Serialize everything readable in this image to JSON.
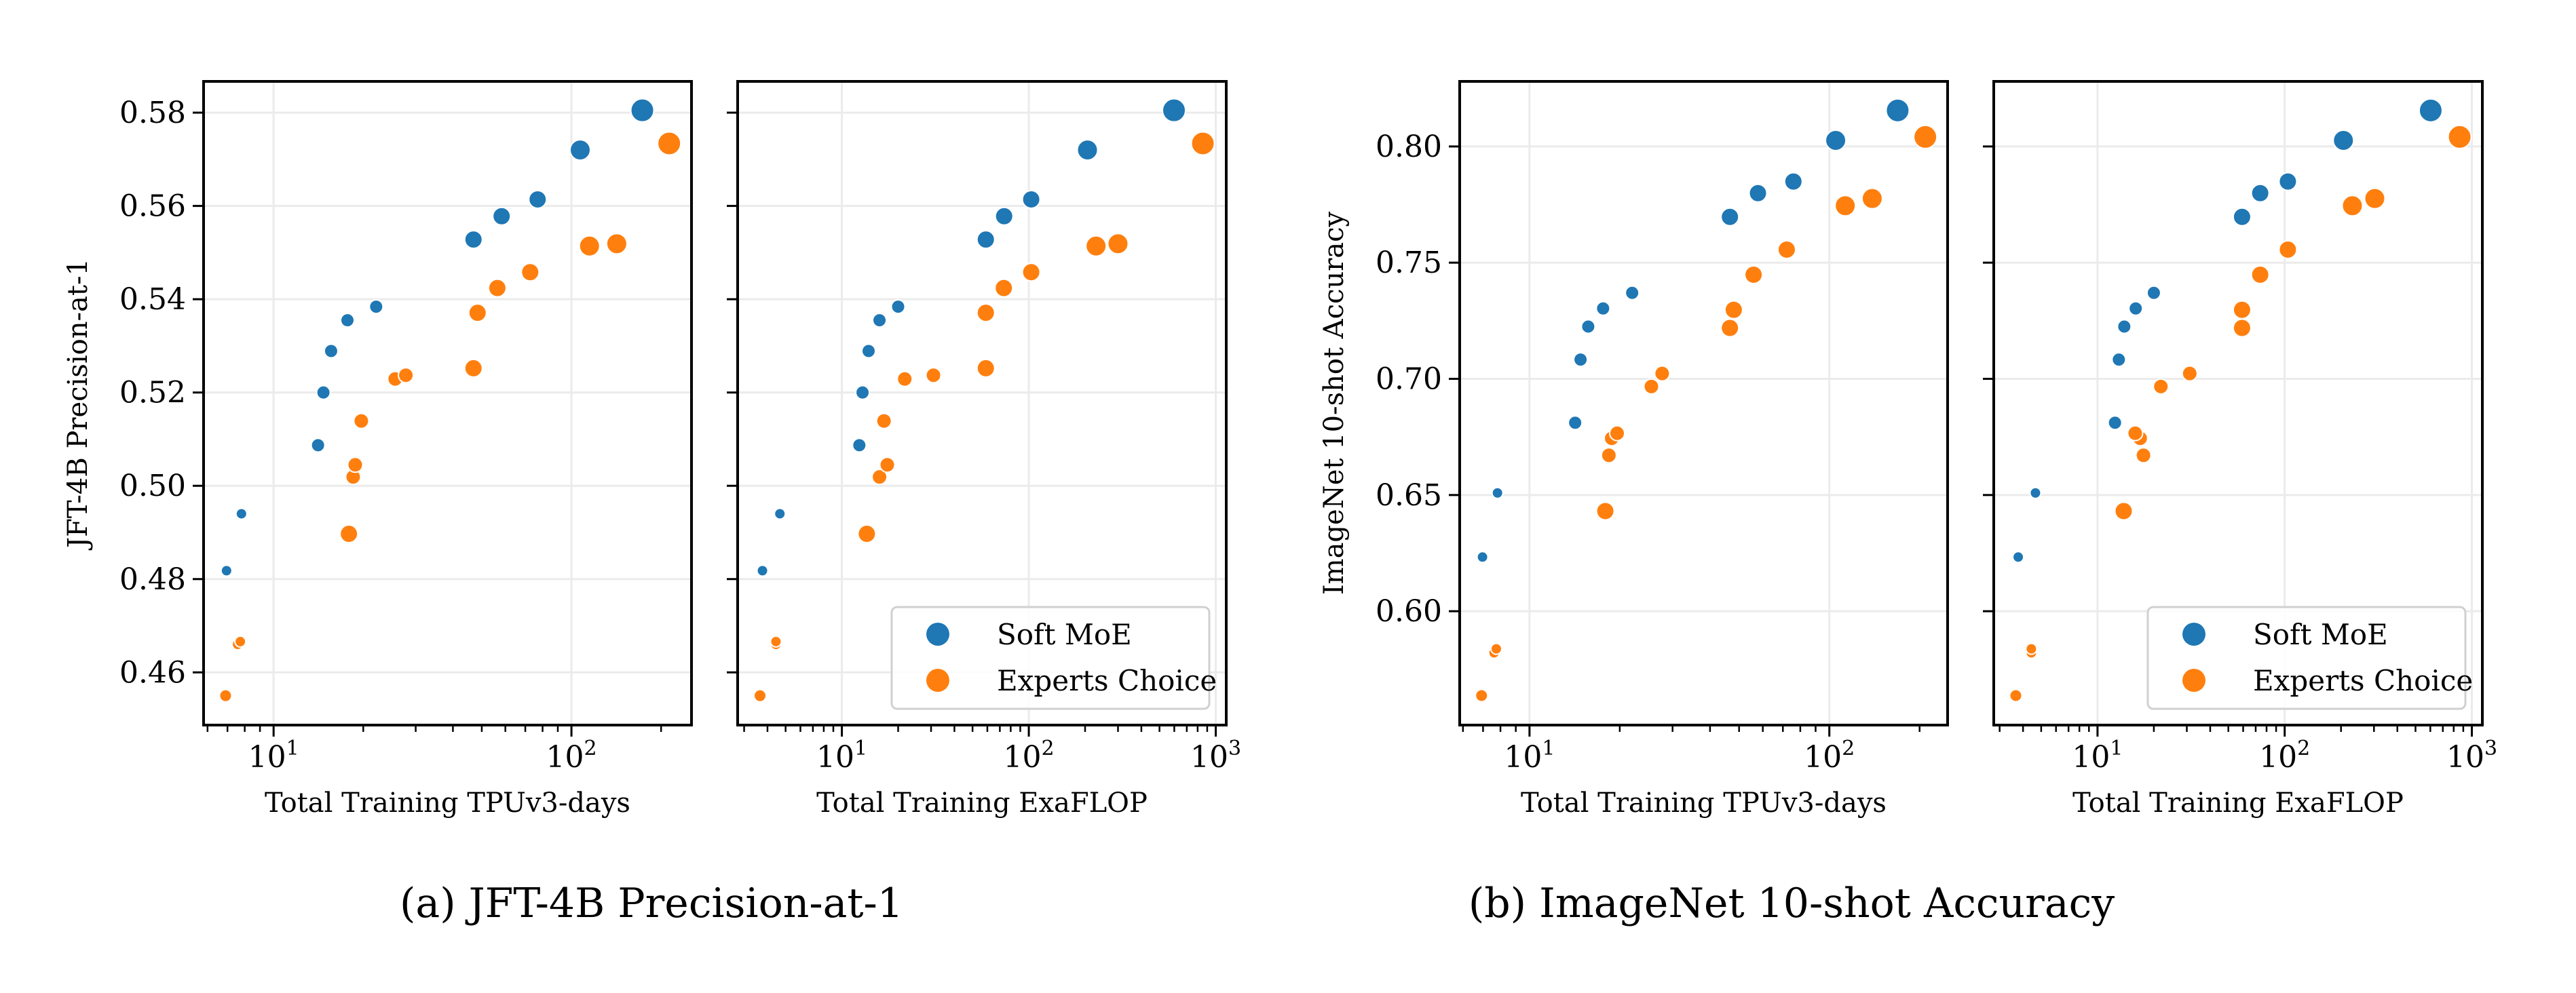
{
  "captions": {
    "a": "(a) JFT-4B Precision-at-1",
    "b": "(b) ImageNet 10-shot Accuracy"
  },
  "colors": {
    "soft_moe": "#1f77b4",
    "experts_choice": "#ff7f0e",
    "grid": "#ebebeb"
  },
  "legend": {
    "soft_moe": "Soft MoE",
    "experts_choice": "Experts Choice"
  },
  "chart_data": [
    {
      "type": "scatter",
      "group": "a",
      "xlabel": "Total Training TPUv3-days",
      "ylabel": "JFT-4B Precision-at-1",
      "xscale": "log",
      "xlim": [
        5.82,
        253
      ],
      "xticks": [
        10,
        100
      ],
      "xtick_labels": [
        "10^1",
        "10^2"
      ],
      "ylim": [
        0.4487,
        0.5867
      ],
      "yticks": [
        0.46,
        0.48,
        0.5,
        0.52,
        0.54,
        0.56,
        0.58
      ],
      "ytick_labels": [
        "0.46",
        "0.48",
        "0.50",
        "0.52",
        "0.54",
        "0.56",
        "0.58"
      ],
      "grid": true,
      "legend": false,
      "series": [
        {
          "name": "Soft MoE",
          "points": [
            [
              6.95,
              0.4818
            ],
            [
              7.8,
              0.494
            ],
            [
              14.1,
              0.5087
            ],
            [
              14.7,
              0.52
            ],
            [
              15.6,
              0.5289
            ],
            [
              17.7,
              0.5355
            ],
            [
              22.1,
              0.5384
            ],
            [
              46.9,
              0.5528
            ],
            [
              58.3,
              0.5578
            ],
            [
              77.0,
              0.5614
            ],
            [
              107,
              0.572
            ],
            [
              173,
              0.5805
            ]
          ]
        },
        {
          "name": "Experts Choice",
          "points": [
            [
              6.9,
              0.455
            ],
            [
              7.57,
              0.466
            ],
            [
              7.73,
              0.4666
            ],
            [
              17.9,
              0.4897
            ],
            [
              18.5,
              0.5019
            ],
            [
              18.8,
              0.5045
            ],
            [
              19.7,
              0.5139
            ],
            [
              25.6,
              0.5229
            ],
            [
              27.8,
              0.5237
            ],
            [
              46.9,
              0.5252
            ],
            [
              48.4,
              0.5371
            ],
            [
              56.4,
              0.5424
            ],
            [
              72.7,
              0.5458
            ],
            [
              115,
              0.5514
            ],
            [
              142,
              0.5519
            ],
            [
              213,
              0.5734
            ]
          ]
        }
      ]
    },
    {
      "type": "scatter",
      "group": "a",
      "xlabel": "Total Training ExaFLOP",
      "ylabel": "",
      "xscale": "log",
      "xlim": [
        2.77,
        1138
      ],
      "xticks": [
        10,
        100,
        1000
      ],
      "xtick_labels": [
        "10^1",
        "10^2",
        "10^3"
      ],
      "ylim": [
        0.4487,
        0.5867
      ],
      "yticks": [
        0.46,
        0.48,
        0.5,
        0.52,
        0.54,
        0.56,
        0.58
      ],
      "grid": true,
      "legend": "lower right",
      "series": [
        {
          "name": "Soft MoE",
          "points": [
            [
              3.76,
              0.4818
            ],
            [
              4.66,
              0.494
            ],
            [
              12.4,
              0.5087
            ],
            [
              12.9,
              0.52
            ],
            [
              13.9,
              0.5289
            ],
            [
              15.9,
              0.5355
            ],
            [
              20.0,
              0.5384
            ],
            [
              58.9,
              0.5528
            ],
            [
              73.8,
              0.5578
            ],
            [
              103,
              0.5614
            ],
            [
              206,
              0.572
            ],
            [
              598,
              0.5805
            ]
          ]
        },
        {
          "name": "Experts Choice",
          "points": [
            [
              3.65,
              0.455
            ],
            [
              4.44,
              0.466
            ],
            [
              4.44,
              0.4666
            ],
            [
              13.6,
              0.4897
            ],
            [
              15.9,
              0.5019
            ],
            [
              17.5,
              0.5045
            ],
            [
              16.8,
              0.5139
            ],
            [
              21.7,
              0.5229
            ],
            [
              30.9,
              0.5237
            ],
            [
              58.9,
              0.5252
            ],
            [
              58.9,
              0.5371
            ],
            [
              73.5,
              0.5424
            ],
            [
              103,
              0.5458
            ],
            [
              229,
              0.5514
            ],
            [
              300,
              0.5519
            ],
            [
              853,
              0.5734
            ]
          ]
        }
      ]
    },
    {
      "type": "scatter",
      "group": "b",
      "xlabel": "Total Training TPUv3-days",
      "ylabel": "ImageNet 10-shot Accuracy",
      "xscale": "log",
      "xlim": [
        5.85,
        248
      ],
      "xticks": [
        10,
        100
      ],
      "xtick_labels": [
        "10^1",
        "10^2"
      ],
      "ylim": [
        0.551,
        0.828
      ],
      "yticks": [
        0.6,
        0.65,
        0.7,
        0.75,
        0.8
      ],
      "ytick_labels": [
        "0.60",
        "0.65",
        "0.70",
        "0.75",
        "0.80"
      ],
      "grid": true,
      "legend": false,
      "series": [
        {
          "name": "Soft MoE",
          "points": [
            [
              6.97,
              0.6233
            ],
            [
              7.82,
              0.6509
            ],
            [
              14.2,
              0.6811
            ],
            [
              14.8,
              0.7083
            ],
            [
              15.7,
              0.7225
            ],
            [
              17.6,
              0.7303
            ],
            [
              22.0,
              0.737
            ],
            [
              46.6,
              0.7697
            ],
            [
              57.8,
              0.7799
            ],
            [
              75.9,
              0.7849
            ],
            [
              105,
              0.8026
            ],
            [
              169,
              0.8155
            ]
          ]
        },
        {
          "name": "Experts Choice",
          "points": [
            [
              6.92,
              0.5637
            ],
            [
              7.62,
              0.5821
            ],
            [
              7.75,
              0.5838
            ],
            [
              17.9,
              0.6431
            ],
            [
              18.4,
              0.6671
            ],
            [
              18.8,
              0.6744
            ],
            [
              19.6,
              0.6766
            ],
            [
              25.5,
              0.6967
            ],
            [
              27.7,
              0.7023
            ],
            [
              46.6,
              0.7219
            ],
            [
              48.0,
              0.7297
            ],
            [
              55.9,
              0.7448
            ],
            [
              72.1,
              0.7556
            ],
            [
              113,
              0.7745
            ],
            [
              139,
              0.7776
            ],
            [
              209,
              0.8041
            ]
          ]
        }
      ]
    },
    {
      "type": "scatter",
      "group": "b",
      "xlabel": "Total Training ExaFLOP",
      "ylabel": "",
      "xscale": "log",
      "xlim": [
        2.79,
        1138
      ],
      "xticks": [
        10,
        100,
        1000
      ],
      "xtick_labels": [
        "10^1",
        "10^2",
        "10^3"
      ],
      "ylim": [
        0.551,
        0.828
      ],
      "yticks": [
        0.6,
        0.65,
        0.7,
        0.75,
        0.8
      ],
      "grid": true,
      "legend": "lower right",
      "series": [
        {
          "name": "Soft MoE",
          "points": [
            [
              3.77,
              0.6233
            ],
            [
              4.66,
              0.6509
            ],
            [
              12.4,
              0.6811
            ],
            [
              13.0,
              0.7083
            ],
            [
              13.9,
              0.7225
            ],
            [
              16.0,
              0.7303
            ],
            [
              20.0,
              0.737
            ],
            [
              59.2,
              0.7697
            ],
            [
              74.0,
              0.7799
            ],
            [
              104,
              0.7849
            ],
            [
              206,
              0.8026
            ],
            [
              603,
              0.8155
            ]
          ]
        },
        {
          "name": "Experts Choice",
          "points": [
            [
              3.66,
              0.5637
            ],
            [
              4.43,
              0.5821
            ],
            [
              4.43,
              0.5838
            ],
            [
              13.8,
              0.6431
            ],
            [
              17.6,
              0.6671
            ],
            [
              16.9,
              0.6744
            ],
            [
              15.9,
              0.6766
            ],
            [
              21.8,
              0.6967
            ],
            [
              31.1,
              0.7023
            ],
            [
              59.2,
              0.7219
            ],
            [
              59.2,
              0.7297
            ],
            [
              74.0,
              0.7448
            ],
            [
              104,
              0.7556
            ],
            [
              230,
              0.7745
            ],
            [
              303,
              0.7776
            ],
            [
              861,
              0.8041
            ]
          ]
        }
      ]
    }
  ]
}
